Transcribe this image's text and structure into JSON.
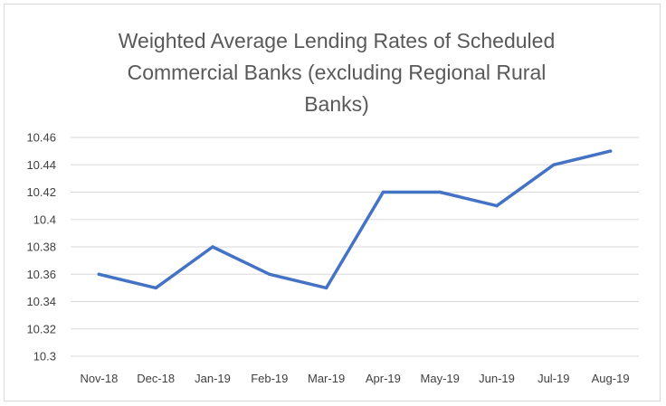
{
  "chart_data": {
    "type": "line",
    "title": "Weighted Average Lending Rates of Scheduled Commercial Banks (excluding Regional Rural Banks)",
    "title_lines": [
      "Weighted Average Lending Rates of Scheduled",
      "Commercial Banks (excluding Regional Rural",
      "Banks)"
    ],
    "xlabel": "",
    "ylabel": "",
    "categories": [
      "Nov-18",
      "Dec-18",
      "Jan-19",
      "Feb-19",
      "Mar-19",
      "Apr-19",
      "May-19",
      "Jun-19",
      "Jul-19",
      "Aug-19"
    ],
    "series": [
      {
        "values": [
          10.36,
          10.35,
          10.38,
          10.36,
          10.35,
          10.42,
          10.42,
          10.41,
          10.44,
          10.45
        ],
        "color": "#4472c4"
      }
    ],
    "ylim": [
      10.3,
      10.46
    ],
    "yticks": [
      "10.3",
      "10.32",
      "10.34",
      "10.36",
      "10.38",
      "10.4",
      "10.42",
      "10.44",
      "10.46"
    ],
    "grid": true,
    "legend": "none",
    "colors": {
      "line": "#4472c4",
      "grid": "#d9d9d9",
      "text": "#404040",
      "title": "#595959",
      "border": "#d9d9d9"
    }
  }
}
